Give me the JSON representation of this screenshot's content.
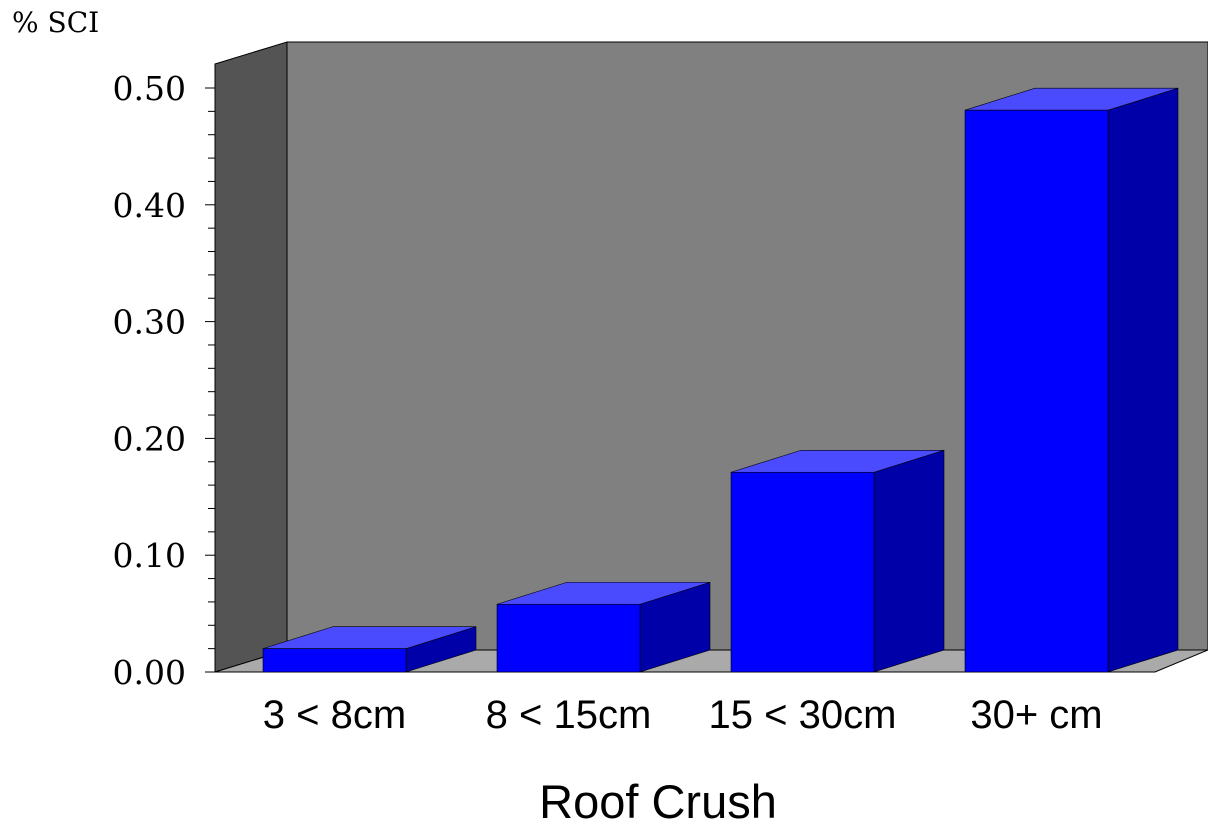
{
  "chart_data": {
    "type": "bar",
    "ylabel": "% SCI",
    "xlabel": "Roof Crush",
    "categories": [
      "3 < 8cm",
      "8 < 15cm",
      "15 < 30cm",
      "30+ cm"
    ],
    "values": [
      0.02,
      0.058,
      0.171,
      0.481
    ],
    "ylim": [
      0,
      0.5
    ],
    "yticks": [
      "0.00",
      "0.10",
      "0.20",
      "0.30",
      "0.40",
      "0.50"
    ],
    "grid": false,
    "style": "3d",
    "colors": {
      "bar_front": "#0000ff",
      "bar_top": "#4a4aff",
      "bar_side": "#0000a8",
      "back_wall": "#808080",
      "side_wall": "#545454",
      "floor": "#aaaaaa"
    }
  }
}
